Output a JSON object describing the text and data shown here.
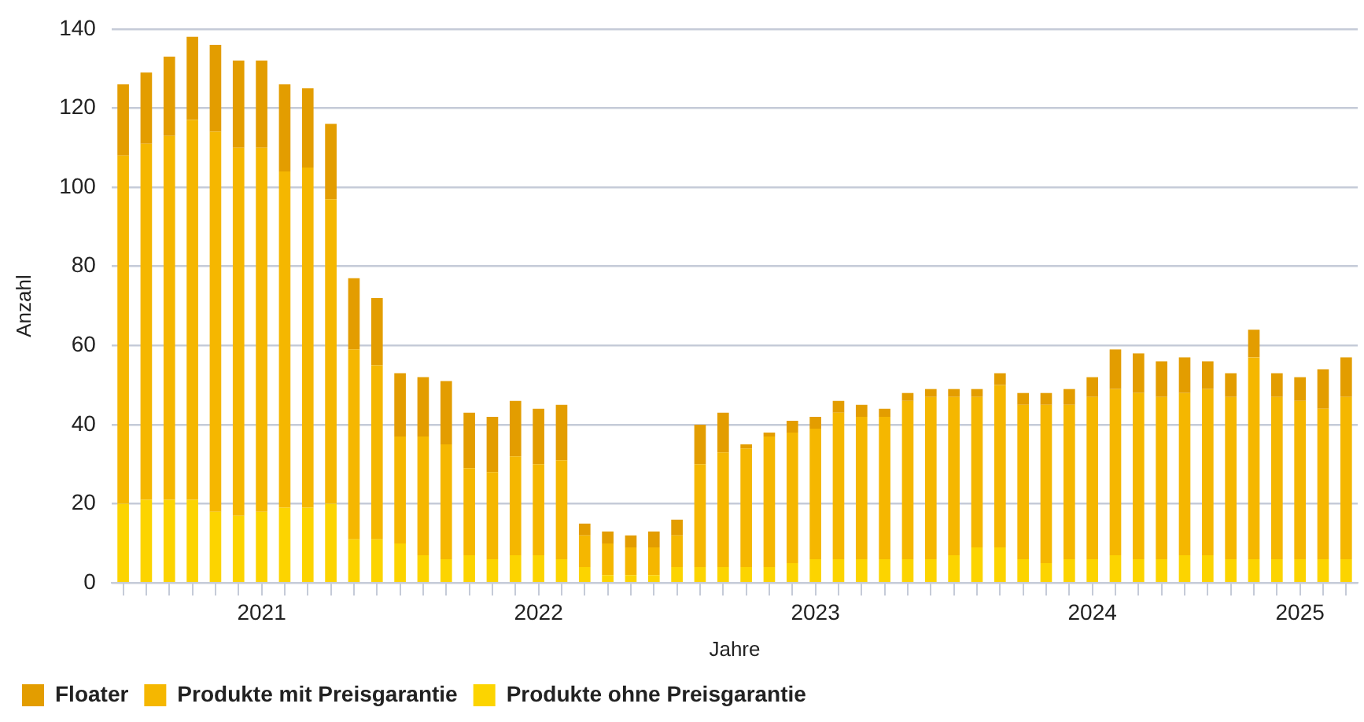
{
  "chart_data": {
    "type": "bar",
    "stacked": true,
    "xlabel": "Jahre",
    "ylabel": "Anzahl",
    "categories": [
      null,
      null,
      null,
      null,
      null,
      null,
      "2021",
      null,
      null,
      null,
      null,
      null,
      null,
      null,
      null,
      null,
      null,
      null,
      "2022",
      null,
      null,
      null,
      null,
      null,
      null,
      null,
      null,
      null,
      null,
      null,
      "2023",
      null,
      null,
      null,
      null,
      null,
      null,
      null,
      null,
      null,
      null,
      null,
      "2024",
      null,
      null,
      null,
      null,
      null,
      null,
      null,
      null,
      "2025",
      null,
      null
    ],
    "series": [
      {
        "name": "Produkte ohne Preisgarantie",
        "color": "#fcd400",
        "values": [
          20,
          21,
          21,
          21,
          18,
          17,
          18,
          19,
          19,
          20,
          11,
          11,
          10,
          7,
          6,
          7,
          6,
          7,
          7,
          6,
          4,
          2,
          2,
          2,
          4,
          4,
          4,
          4,
          4,
          5,
          6,
          6,
          6,
          6,
          6,
          6,
          7,
          9,
          9,
          6,
          5,
          6,
          6,
          7,
          6,
          6,
          7,
          7,
          6,
          6,
          6,
          6,
          6,
          6
        ]
      },
      {
        "name": "Produkte mit Preisgarantie",
        "color": "#f5b700",
        "values": [
          88,
          90,
          92,
          96,
          96,
          93,
          92,
          85,
          86,
          77,
          48,
          44,
          27,
          30,
          29,
          22,
          22,
          25,
          23,
          25,
          8,
          8,
          7,
          7,
          8,
          26,
          29,
          30,
          33,
          33,
          33,
          37,
          36,
          36,
          40,
          41,
          40,
          38,
          41,
          39,
          40,
          39,
          41,
          42,
          42,
          41,
          41,
          42,
          41,
          51,
          41,
          40,
          38,
          41
        ]
      },
      {
        "name": "Floater",
        "color": "#e39d00",
        "values": [
          18,
          18,
          20,
          21,
          22,
          22,
          22,
          22,
          20,
          19,
          18,
          17,
          16,
          15,
          16,
          14,
          14,
          14,
          14,
          14,
          3,
          3,
          3,
          4,
          4,
          10,
          10,
          1,
          1,
          3,
          3,
          3,
          3,
          2,
          2,
          2,
          2,
          2,
          3,
          3,
          3,
          4,
          5,
          10,
          10,
          9,
          9,
          7,
          6,
          7,
          6,
          6,
          10,
          10
        ]
      }
    ],
    "ylim": [
      0,
      140
    ],
    "yticks": [
      0,
      20,
      40,
      60,
      80,
      100,
      120,
      140
    ],
    "grid": "y",
    "legend": "bottom left"
  }
}
